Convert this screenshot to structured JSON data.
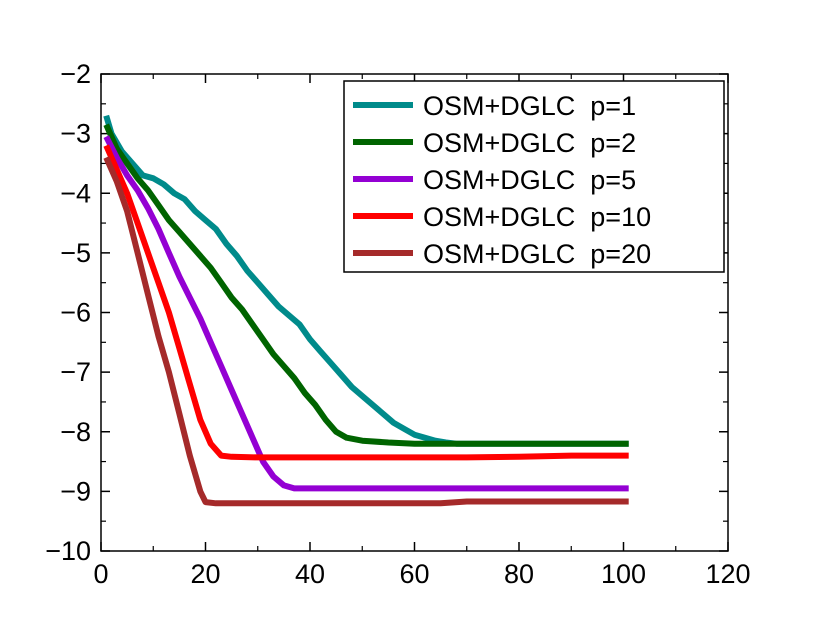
{
  "chart_data": {
    "type": "line",
    "title": "",
    "xlabel": "",
    "ylabel": "",
    "xlim": [
      0,
      120
    ],
    "ylim": [
      -10,
      -2
    ],
    "x_ticks": [
      0,
      20,
      40,
      60,
      80,
      100,
      120
    ],
    "y_ticks": [
      -10,
      -9,
      -8,
      -7,
      -6,
      -5,
      -4,
      -3,
      -2
    ],
    "x_tick_labels": [
      "0",
      "20",
      "40",
      "60",
      "80",
      "100",
      "120"
    ],
    "y_tick_labels": [
      "−10",
      "−9",
      "−8",
      "−7",
      "−6",
      "−5",
      "−4",
      "−3",
      "−2"
    ],
    "grid": false,
    "legend_position": "top-right",
    "series": [
      {
        "name": "OSM+DGLC  p=1",
        "color": "#008b8b",
        "x": [
          1,
          2,
          4,
          6,
          8,
          10,
          12,
          14,
          16,
          18,
          20,
          22,
          24,
          26,
          28,
          30,
          32,
          34,
          36,
          38,
          40,
          42,
          44,
          46,
          48,
          50,
          52,
          54,
          56,
          58,
          60,
          62,
          64,
          66,
          68,
          70,
          75,
          80,
          90,
          101
        ],
        "y": [
          -2.7,
          -3.0,
          -3.3,
          -3.5,
          -3.7,
          -3.75,
          -3.85,
          -4.0,
          -4.1,
          -4.3,
          -4.45,
          -4.6,
          -4.85,
          -5.05,
          -5.3,
          -5.5,
          -5.7,
          -5.9,
          -6.05,
          -6.2,
          -6.45,
          -6.65,
          -6.85,
          -7.05,
          -7.25,
          -7.4,
          -7.55,
          -7.7,
          -7.85,
          -7.95,
          -8.05,
          -8.1,
          -8.15,
          -8.18,
          -8.2,
          -8.2,
          -8.2,
          -8.2,
          -8.2,
          -8.2
        ]
      },
      {
        "name": "OSM+DGLC  p=2",
        "color": "#006400",
        "x": [
          1,
          3,
          5,
          7,
          9,
          11,
          13,
          15,
          17,
          19,
          21,
          23,
          25,
          27,
          29,
          31,
          33,
          35,
          37,
          39,
          41,
          43,
          45,
          47,
          50,
          55,
          60,
          70,
          80,
          90,
          101
        ],
        "y": [
          -2.85,
          -3.25,
          -3.5,
          -3.75,
          -3.95,
          -4.2,
          -4.45,
          -4.65,
          -4.85,
          -5.05,
          -5.25,
          -5.5,
          -5.75,
          -5.95,
          -6.2,
          -6.45,
          -6.7,
          -6.9,
          -7.1,
          -7.35,
          -7.55,
          -7.8,
          -8.0,
          -8.1,
          -8.15,
          -8.18,
          -8.2,
          -8.2,
          -8.2,
          -8.2,
          -8.2
        ]
      },
      {
        "name": "OSM+DGLC  p=5",
        "color": "#9400d3",
        "x": [
          1,
          3,
          5,
          7,
          9,
          11,
          13,
          15,
          17,
          19,
          21,
          23,
          25,
          27,
          29,
          31,
          33,
          35,
          37,
          40,
          45,
          50,
          60,
          70,
          80,
          90,
          101
        ],
        "y": [
          -3.05,
          -3.4,
          -3.7,
          -3.95,
          -4.25,
          -4.6,
          -5.0,
          -5.4,
          -5.75,
          -6.1,
          -6.5,
          -6.9,
          -7.3,
          -7.7,
          -8.1,
          -8.5,
          -8.75,
          -8.9,
          -8.95,
          -8.95,
          -8.95,
          -8.95,
          -8.95,
          -8.95,
          -8.95,
          -8.95,
          -8.95
        ]
      },
      {
        "name": "OSM+DGLC  p=10",
        "color": "#ff0000",
        "x": [
          1,
          3,
          5,
          7,
          9,
          11,
          13,
          15,
          17,
          19,
          21,
          23,
          25,
          30,
          40,
          50,
          60,
          70,
          80,
          90,
          101
        ],
        "y": [
          -3.2,
          -3.6,
          -4.0,
          -4.5,
          -5.0,
          -5.5,
          -6.0,
          -6.6,
          -7.2,
          -7.8,
          -8.2,
          -8.4,
          -8.42,
          -8.43,
          -8.43,
          -8.43,
          -8.43,
          -8.43,
          -8.42,
          -8.4,
          -8.4
        ]
      },
      {
        "name": "OSM+DGLC  p=20",
        "color": "#a52a2a",
        "x": [
          1,
          3,
          5,
          7,
          9,
          11,
          13,
          15,
          17,
          19,
          20,
          22,
          30,
          40,
          50,
          60,
          65,
          70,
          80,
          90,
          101
        ],
        "y": [
          -3.4,
          -3.8,
          -4.3,
          -5.0,
          -5.7,
          -6.4,
          -7.0,
          -7.7,
          -8.4,
          -9.0,
          -9.18,
          -9.2,
          -9.2,
          -9.2,
          -9.2,
          -9.2,
          -9.2,
          -9.17,
          -9.17,
          -9.17,
          -9.17
        ]
      }
    ]
  }
}
